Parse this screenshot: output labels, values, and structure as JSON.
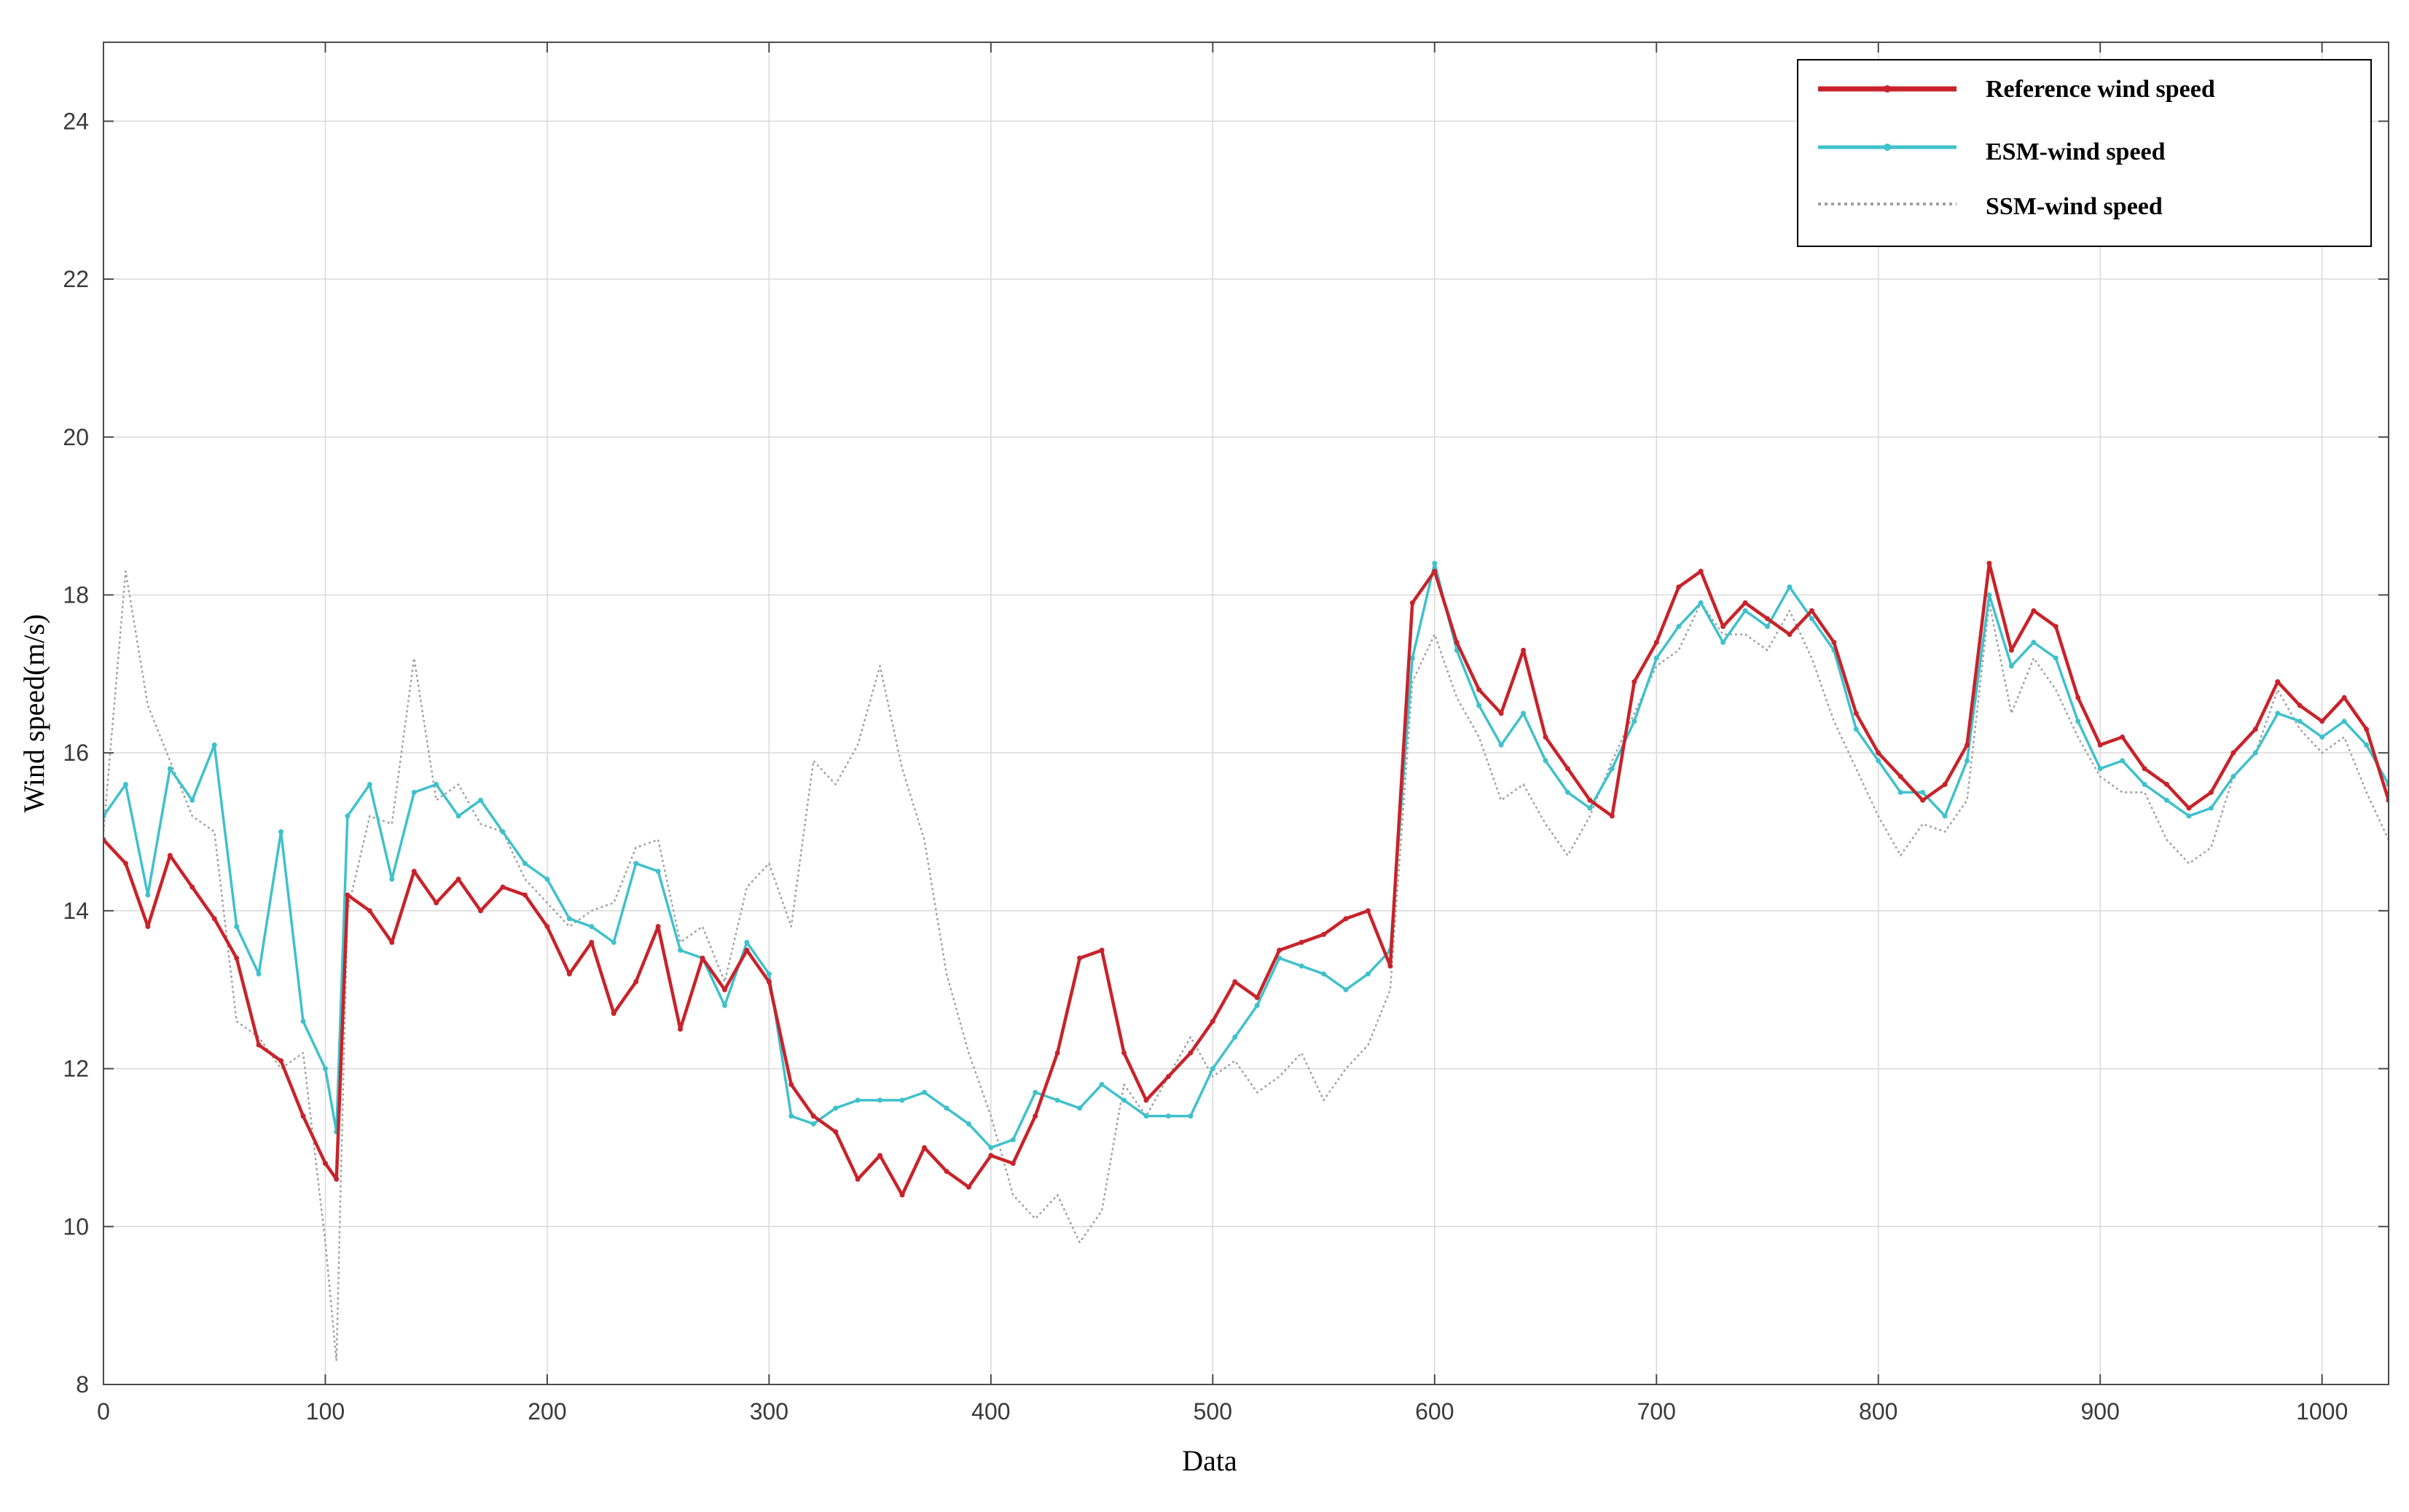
{
  "chart_data": {
    "type": "line",
    "title": "",
    "xlabel": "Data",
    "ylabel": "Wind speed(m/s)",
    "xlim": [
      0,
      1030
    ],
    "ylim": [
      8,
      25
    ],
    "x_ticks": [
      0,
      100,
      200,
      300,
      400,
      500,
      600,
      700,
      800,
      900,
      1000
    ],
    "y_ticks": [
      8,
      10,
      12,
      14,
      16,
      18,
      20,
      22,
      24
    ],
    "grid": true,
    "legend_position": "top-right",
    "colors": {
      "reference": "#c8232a",
      "esm": "#3fc1cb",
      "ssm": "#a0a0a0"
    },
    "series": [
      {
        "name": "Reference wind speed",
        "style": "solid",
        "x": [
          0,
          10,
          20,
          30,
          40,
          50,
          60,
          70,
          80,
          90,
          100,
          105,
          110,
          120,
          130,
          140,
          150,
          160,
          170,
          180,
          190,
          200,
          210,
          220,
          230,
          240,
          250,
          260,
          270,
          280,
          290,
          300,
          310,
          320,
          330,
          340,
          350,
          360,
          370,
          380,
          390,
          400,
          410,
          420,
          430,
          440,
          450,
          460,
          470,
          480,
          490,
          500,
          510,
          520,
          530,
          540,
          550,
          560,
          570,
          580,
          590,
          600,
          610,
          620,
          630,
          640,
          650,
          660,
          670,
          680,
          690,
          700,
          710,
          720,
          730,
          740,
          750,
          760,
          770,
          780,
          790,
          800,
          810,
          820,
          830,
          840,
          850,
          860,
          870,
          880,
          890,
          900,
          910,
          920,
          930,
          940,
          950,
          960,
          970,
          980,
          990,
          1000,
          1010,
          1020,
          1030
        ],
        "values": [
          14.9,
          14.6,
          13.8,
          14.7,
          14.3,
          13.9,
          13.4,
          12.3,
          12.1,
          11.4,
          10.8,
          10.6,
          14.2,
          14.0,
          13.6,
          14.5,
          14.1,
          14.4,
          14.0,
          14.3,
          14.2,
          13.8,
          13.2,
          13.6,
          12.7,
          13.1,
          13.8,
          12.5,
          13.4,
          13.0,
          13.5,
          13.1,
          11.8,
          11.4,
          11.2,
          10.6,
          10.9,
          10.4,
          11.0,
          10.7,
          10.5,
          10.9,
          10.8,
          11.4,
          12.2,
          13.4,
          13.5,
          12.2,
          11.6,
          11.9,
          12.2,
          12.6,
          13.1,
          12.9,
          13.5,
          13.6,
          13.7,
          13.9,
          14.0,
          13.3,
          17.9,
          18.3,
          17.4,
          16.8,
          16.5,
          17.3,
          16.2,
          15.8,
          15.4,
          15.2,
          16.9,
          17.4,
          18.1,
          18.3,
          17.6,
          17.9,
          17.7,
          17.5,
          17.8,
          17.4,
          16.5,
          16.0,
          15.7,
          15.4,
          15.6,
          16.1,
          18.4,
          17.3,
          17.8,
          17.6,
          16.7,
          16.1,
          16.2,
          15.8,
          15.6,
          15.3,
          15.5,
          16.0,
          16.3,
          16.9,
          16.6,
          16.4,
          16.7,
          16.3,
          15.4
        ]
      },
      {
        "name": "ESM-wind speed",
        "style": "solid",
        "x": [
          0,
          10,
          20,
          30,
          40,
          50,
          60,
          70,
          80,
          90,
          100,
          105,
          110,
          120,
          130,
          140,
          150,
          160,
          170,
          180,
          190,
          200,
          210,
          220,
          230,
          240,
          250,
          260,
          270,
          280,
          290,
          300,
          310,
          320,
          330,
          340,
          350,
          360,
          370,
          380,
          390,
          400,
          410,
          420,
          430,
          440,
          450,
          460,
          470,
          480,
          490,
          500,
          510,
          520,
          530,
          540,
          550,
          560,
          570,
          580,
          590,
          600,
          610,
          620,
          630,
          640,
          650,
          660,
          670,
          680,
          690,
          700,
          710,
          720,
          730,
          740,
          750,
          760,
          770,
          780,
          790,
          800,
          810,
          820,
          830,
          840,
          850,
          860,
          870,
          880,
          890,
          900,
          910,
          920,
          930,
          940,
          950,
          960,
          970,
          980,
          990,
          1000,
          1010,
          1020,
          1030
        ],
        "values": [
          15.2,
          15.6,
          14.2,
          15.8,
          15.4,
          16.1,
          13.8,
          13.2,
          15.0,
          12.6,
          12.0,
          11.2,
          15.2,
          15.6,
          14.4,
          15.5,
          15.6,
          15.2,
          15.4,
          15.0,
          14.6,
          14.4,
          13.9,
          13.8,
          13.6,
          14.6,
          14.5,
          13.5,
          13.4,
          12.8,
          13.6,
          13.2,
          11.4,
          11.3,
          11.5,
          11.6,
          11.6,
          11.6,
          11.7,
          11.5,
          11.3,
          11.0,
          11.1,
          11.7,
          11.6,
          11.5,
          11.8,
          11.6,
          11.4,
          11.4,
          11.4,
          12.0,
          12.4,
          12.8,
          13.4,
          13.3,
          13.2,
          13.0,
          13.2,
          13.5,
          17.2,
          18.4,
          17.3,
          16.6,
          16.1,
          16.5,
          15.9,
          15.5,
          15.3,
          15.8,
          16.4,
          17.2,
          17.6,
          17.9,
          17.4,
          17.8,
          17.6,
          18.1,
          17.7,
          17.3,
          16.3,
          15.9,
          15.5,
          15.5,
          15.2,
          15.9,
          18.0,
          17.1,
          17.4,
          17.2,
          16.4,
          15.8,
          15.9,
          15.6,
          15.4,
          15.2,
          15.3,
          15.7,
          16.0,
          16.5,
          16.4,
          16.2,
          16.4,
          16.1,
          15.6
        ]
      },
      {
        "name": "SSM-wind speed",
        "style": "dotted",
        "x": [
          0,
          10,
          20,
          30,
          40,
          50,
          60,
          70,
          80,
          90,
          100,
          105,
          110,
          120,
          130,
          140,
          150,
          160,
          170,
          180,
          190,
          200,
          210,
          220,
          230,
          240,
          250,
          260,
          270,
          280,
          290,
          300,
          310,
          320,
          330,
          340,
          350,
          360,
          370,
          380,
          390,
          400,
          410,
          420,
          430,
          440,
          450,
          460,
          470,
          480,
          490,
          500,
          510,
          520,
          530,
          540,
          550,
          560,
          570,
          580,
          590,
          600,
          610,
          620,
          630,
          640,
          650,
          660,
          670,
          680,
          690,
          700,
          710,
          720,
          730,
          740,
          750,
          760,
          770,
          780,
          790,
          800,
          810,
          820,
          830,
          840,
          850,
          860,
          870,
          880,
          890,
          900,
          910,
          920,
          930,
          940,
          950,
          960,
          970,
          980,
          990,
          1000,
          1010,
          1020,
          1030
        ],
        "values": [
          15.0,
          18.3,
          16.6,
          15.9,
          15.2,
          15.0,
          12.6,
          12.4,
          12.0,
          12.2,
          9.8,
          8.3,
          14.0,
          15.2,
          15.1,
          17.2,
          15.4,
          15.6,
          15.1,
          15.0,
          14.4,
          14.1,
          13.8,
          14.0,
          14.1,
          14.8,
          14.9,
          13.6,
          13.8,
          13.1,
          14.3,
          14.6,
          13.8,
          15.9,
          15.6,
          16.1,
          17.1,
          15.8,
          14.9,
          13.2,
          12.2,
          11.4,
          10.4,
          10.1,
          10.4,
          9.8,
          10.2,
          11.8,
          11.4,
          11.9,
          12.4,
          11.9,
          12.1,
          11.7,
          11.9,
          12.2,
          11.6,
          12.0,
          12.3,
          13.0,
          16.9,
          17.5,
          16.7,
          16.2,
          15.4,
          15.6,
          15.1,
          14.7,
          15.2,
          15.9,
          16.5,
          17.1,
          17.3,
          17.9,
          17.5,
          17.5,
          17.3,
          17.8,
          17.2,
          16.4,
          15.8,
          15.2,
          14.7,
          15.1,
          15.0,
          15.4,
          17.9,
          16.5,
          17.2,
          16.8,
          16.2,
          15.7,
          15.5,
          15.5,
          14.9,
          14.6,
          14.8,
          15.7,
          16.0,
          16.8,
          16.3,
          16.0,
          16.2,
          15.5,
          14.9
        ]
      }
    ]
  }
}
